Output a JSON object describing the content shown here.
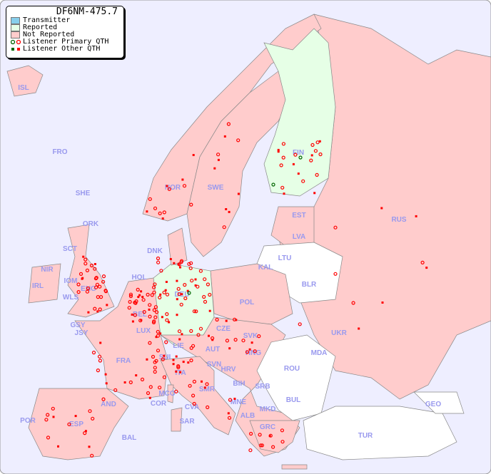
{
  "title": "DF6NM-475.7",
  "legend": [
    {
      "label": "Transmitter",
      "color": "#87ceeb"
    },
    {
      "label": "Reported",
      "color": "#e6ffe6"
    },
    {
      "label": "Not Reported",
      "color": "#ffcccc"
    },
    {
      "label": "Listener Primary QTH",
      "marker": "circle"
    },
    {
      "label": "Listener Other QTH",
      "marker": "square"
    }
  ],
  "colors": {
    "sea": "#eeeeff",
    "reported": "#e6ffe6",
    "not_reported": "#ffcccc",
    "no_data": "#ffffff",
    "marker": "#ff0000",
    "marker_reported": "#006600",
    "label": "#9999ee"
  },
  "countries": {
    "reported": [
      "FIN",
      "DEU"
    ],
    "not_reported": [
      "ISL",
      "FRO",
      "SHE",
      "ORK",
      "NOR",
      "SWE",
      "EST",
      "RUS",
      "LVA",
      "DNK",
      "HOL",
      "POL",
      "IRL",
      "NIR",
      "SCT",
      "IOM",
      "WLS",
      "ENG",
      "BEL",
      "LUX",
      "GSY",
      "JSY",
      "FRA",
      "CZE",
      "SVK",
      "UKR",
      "AUT",
      "HNG",
      "SUI",
      "LIE",
      "SVN",
      "HRV",
      "ITA",
      "BIH",
      "SRB",
      "MCO",
      "COR",
      "SMR",
      "CVA",
      "AND",
      "MNE",
      "ALB",
      "GRC",
      "POR",
      "ESP",
      "SAR",
      "BAL",
      "GEO"
    ],
    "no_data": [
      "LTU",
      "KAL",
      "BLR",
      "MDA",
      "ROU",
      "BUL",
      "MKD",
      "TUR"
    ]
  },
  "labels": [
    "ISL",
    "FRO",
    "SHE",
    "ORK",
    "NOR",
    "SWE",
    "FIN",
    "EST",
    "RUS",
    "LVA",
    "LTU",
    "DNK",
    "KAL",
    "BLR",
    "HOL",
    "DEU",
    "POL",
    "IRL",
    "NIR",
    "SCT",
    "IOM",
    "WLS",
    "ENG",
    "BEL",
    "LUX",
    "GSY",
    "JSY",
    "FRA",
    "CZE",
    "SVK",
    "UKR",
    "MDA",
    "AUT",
    "HNG",
    "SUI",
    "LIE",
    "SVN",
    "HRV",
    "ROU",
    "ITA",
    "BIH",
    "SRB",
    "MCO",
    "COR",
    "SMR",
    "CVA",
    "AND",
    "BUL",
    "MNE",
    "MKD",
    "ALB",
    "GEO",
    "POR",
    "ESP",
    "SAR",
    "BAL",
    "GRC",
    "TUR"
  ]
}
